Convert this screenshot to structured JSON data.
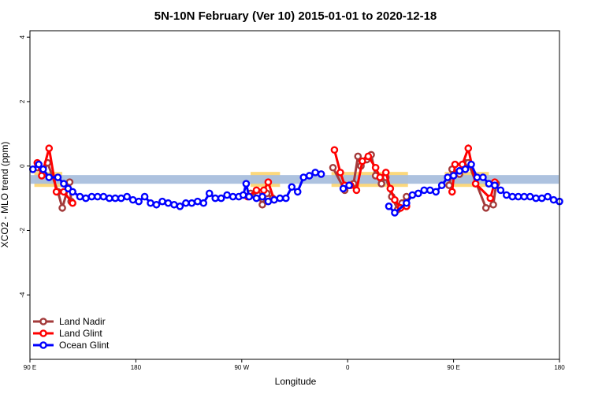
{
  "chart_data": {
    "type": "line",
    "title": "5N-10N February (Ver 10)   2015-01-01 to 2020-12-18",
    "xlabel": "Longitude",
    "ylabel": "XCO2 - MLO trend (ppm)",
    "xlim": [
      0,
      360
    ],
    "ylim": [
      -6,
      4.2
    ],
    "x_ticks": [
      {
        "pos": 0,
        "label": "90 E"
      },
      {
        "pos": 72,
        "label": "180"
      },
      {
        "pos": 144,
        "label": "90 W"
      },
      {
        "pos": 216,
        "label": "0"
      },
      {
        "pos": 288,
        "label": "90 E"
      },
      {
        "pos": 360,
        "label": "180"
      }
    ],
    "y_ticks": [
      {
        "value": 4,
        "label": "4"
      },
      {
        "value": 2,
        "label": "2"
      },
      {
        "value": 0,
        "label": "0"
      },
      {
        "value": -2,
        "label": "-2"
      },
      {
        "value": -4,
        "label": "-4"
      }
    ],
    "band": {
      "y_range": [
        -0.55,
        -0.28
      ],
      "color": "#a9bfdd"
    },
    "land_mask": {
      "color": "#fcd87c",
      "segments": [
        [
          3,
          22
        ],
        [
          150,
          170
        ],
        [
          205,
          257
        ],
        [
          282,
          312
        ]
      ]
    },
    "legend_position": "bottom-left",
    "series": [
      {
        "name": "Land Nadir",
        "color": "#a33b3b",
        "x": [
          5,
          9,
          12,
          19,
          22,
          27,
          28,
          150,
          155,
          158,
          161,
          165,
          206,
          214,
          220,
          223,
          225,
          229,
          232,
          235,
          239,
          242,
          246,
          250,
          253,
          256,
          285,
          287,
          292,
          296,
          298,
          310,
          315,
          317
        ],
        "y": [
          -0.05,
          -0.25,
          0.1,
          -0.8,
          -1.3,
          -0.5,
          -1.1,
          -0.85,
          -0.9,
          -1.2,
          -0.85,
          -1.0,
          -0.05,
          -0.75,
          -0.55,
          0.3,
          0.0,
          0.2,
          0.35,
          -0.3,
          -0.55,
          -0.35,
          -0.95,
          -1.35,
          -1.15,
          -0.95,
          -0.6,
          -0.1,
          -0.25,
          0.1,
          0.1,
          -1.3,
          -1.2,
          -0.55
        ]
      },
      {
        "name": "Land Glint",
        "color": "#ff0000",
        "x": [
          5,
          8,
          13,
          18,
          23,
          29,
          148,
          154,
          159,
          162,
          166,
          207,
          211,
          214,
          218,
          222,
          226,
          230,
          235,
          238,
          242,
          245,
          248,
          252,
          256,
          287,
          289,
          294,
          298,
          303,
          313,
          316
        ],
        "y": [
          0.1,
          -0.3,
          0.55,
          -0.8,
          -0.8,
          -1.15,
          -0.95,
          -0.75,
          -0.75,
          -0.5,
          -1.05,
          0.5,
          -0.2,
          -0.6,
          -0.6,
          -0.75,
          0.15,
          0.3,
          -0.05,
          -0.35,
          -0.2,
          -0.7,
          -1.05,
          -1.3,
          -1.25,
          -0.8,
          0.05,
          0.05,
          0.55,
          -0.55,
          -1.0,
          -0.5
        ]
      },
      {
        "name": "Ocean Glint",
        "color": "#0000ff",
        "x": [
          2,
          6,
          9,
          13,
          19,
          23,
          26,
          29,
          34,
          38,
          42,
          46,
          50,
          54,
          58,
          62,
          66,
          70,
          74,
          78,
          82,
          86,
          90,
          94,
          98,
          102,
          106,
          110,
          114,
          118,
          122,
          126,
          130,
          134,
          138,
          142,
          145,
          147,
          149,
          154,
          158,
          162,
          166,
          170,
          174,
          178,
          182,
          186,
          190,
          194,
          198,
          213,
          217,
          244,
          248,
          256,
          260,
          264,
          268,
          272,
          276,
          280,
          284,
          288,
          292,
          296,
          300,
          304,
          308,
          312,
          316,
          320,
          324,
          328,
          332,
          336,
          340,
          344,
          348,
          352,
          356,
          360
        ],
        "y": [
          -0.1,
          0.05,
          -0.1,
          -0.35,
          -0.35,
          -0.55,
          -0.7,
          -0.8,
          -0.95,
          -1.0,
          -0.95,
          -0.95,
          -0.95,
          -1.0,
          -1.0,
          -1.0,
          -0.95,
          -1.05,
          -1.1,
          -0.95,
          -1.15,
          -1.2,
          -1.1,
          -1.15,
          -1.2,
          -1.25,
          -1.15,
          -1.15,
          -1.1,
          -1.15,
          -0.85,
          -1.0,
          -1.0,
          -0.9,
          -0.95,
          -0.95,
          -0.9,
          -0.55,
          -0.95,
          -1.0,
          -0.95,
          -1.1,
          -1.05,
          -1.0,
          -1.0,
          -0.65,
          -0.8,
          -0.35,
          -0.3,
          -0.2,
          -0.25,
          -0.7,
          -0.6,
          -1.25,
          -1.45,
          -1.15,
          -0.9,
          -0.85,
          -0.75,
          -0.75,
          -0.8,
          -0.6,
          -0.35,
          -0.3,
          -0.15,
          -0.1,
          0.05,
          -0.35,
          -0.35,
          -0.55,
          -0.6,
          -0.75,
          -0.9,
          -0.95,
          -0.95,
          -0.95,
          -0.95,
          -1.0,
          -1.0,
          -0.95,
          -1.05,
          -1.1
        ]
      }
    ]
  }
}
